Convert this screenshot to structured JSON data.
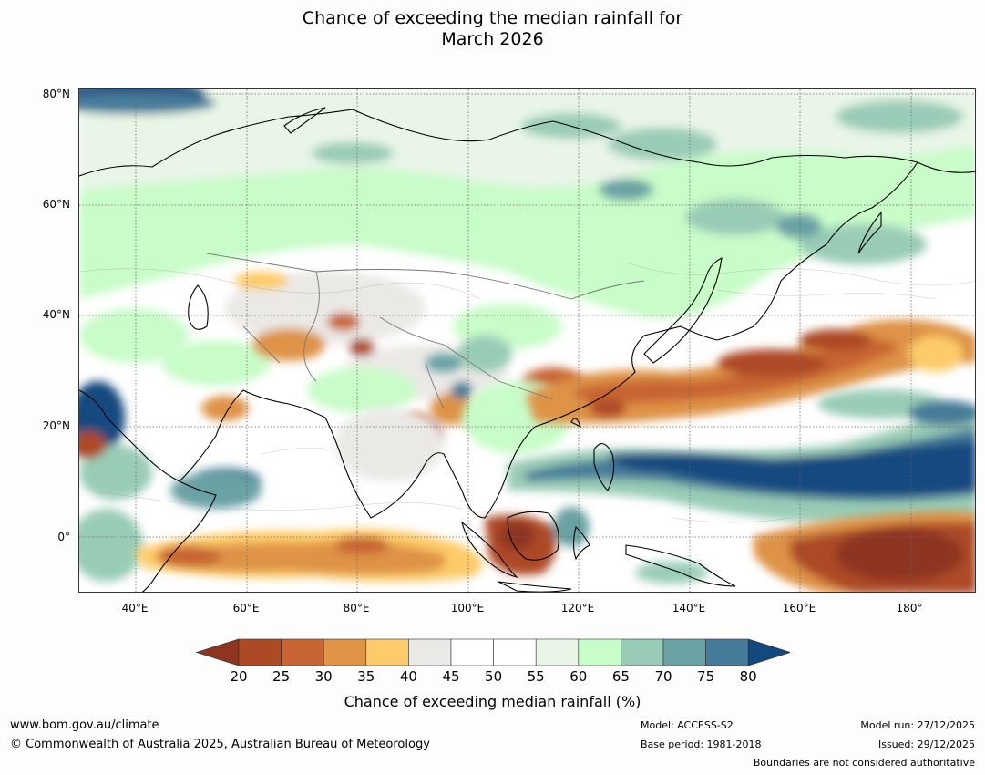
{
  "title": {
    "line1": "Chance of exceeding the median rainfall for",
    "line2": "March 2026"
  },
  "axes": {
    "lat_labels": [
      "80°N",
      "60°N",
      "40°N",
      "20°N",
      "0°"
    ],
    "lon_labels": [
      "40°E",
      "60°E",
      "80°E",
      "100°E",
      "120°E",
      "140°E",
      "160°E",
      "180°"
    ]
  },
  "legend": {
    "ticks": [
      "20",
      "25",
      "30",
      "35",
      "40",
      "45",
      "50",
      "55",
      "60",
      "65",
      "70",
      "75",
      "80"
    ],
    "colors": [
      "#8e3520",
      "#ad4a26",
      "#c86532",
      "#de9346",
      "#fdcb69",
      "#ebe9e6",
      "#ffffff",
      "#ffffff",
      "#e8f5e7",
      "#c8fcc8",
      "#99ccb6",
      "#6aa2a4",
      "#467b99",
      "#12497f"
    ],
    "title": "Chance of exceeding median rainfall (%)"
  },
  "footer": {
    "website": "www.bom.gov.au/climate",
    "copyright": "© Commonwealth of Australia 2025, Australian Bureau of Meteorology",
    "model": "Model: ACCESS-S2",
    "base_period": "Base period: 1981-2018",
    "model_run": "Model run: 27/12/2025",
    "issued": "Issued: 29/12/2025",
    "disclaimer": "Boundaries are not considered authoritative"
  }
}
